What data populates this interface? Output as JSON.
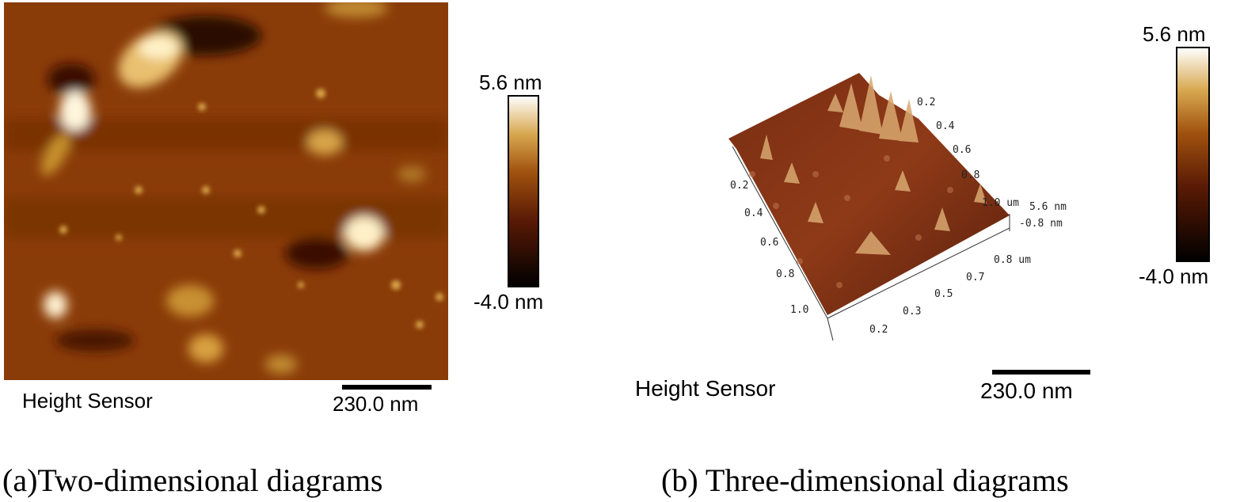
{
  "panel_a": {
    "colorbar_max": "5.6 nm",
    "colorbar_min": "-4.0 nm",
    "channel": "Height Sensor",
    "scale_bar": "230.0 nm",
    "caption": "(a)Two-dimensional diagrams"
  },
  "panel_b": {
    "colorbar_max": "5.6 nm",
    "colorbar_min": "-4.0 nm",
    "channel": "Height Sensor",
    "scale_bar": "230.0 nm",
    "caption": "(b) Three-dimensional diagrams",
    "back_axis_labels": [
      "0.2",
      "0.4",
      "0.6",
      "0.8",
      "1.0 um"
    ],
    "z_axis_labels": [
      "5.6 nm",
      "-0.8 nm"
    ],
    "left_axis_labels": [
      "0.2",
      "0.4",
      "0.6",
      "0.8",
      "1.0"
    ],
    "front_axis_labels": [
      "0.2",
      "0.3",
      "0.5",
      "0.7",
      "0.8 um"
    ]
  }
}
